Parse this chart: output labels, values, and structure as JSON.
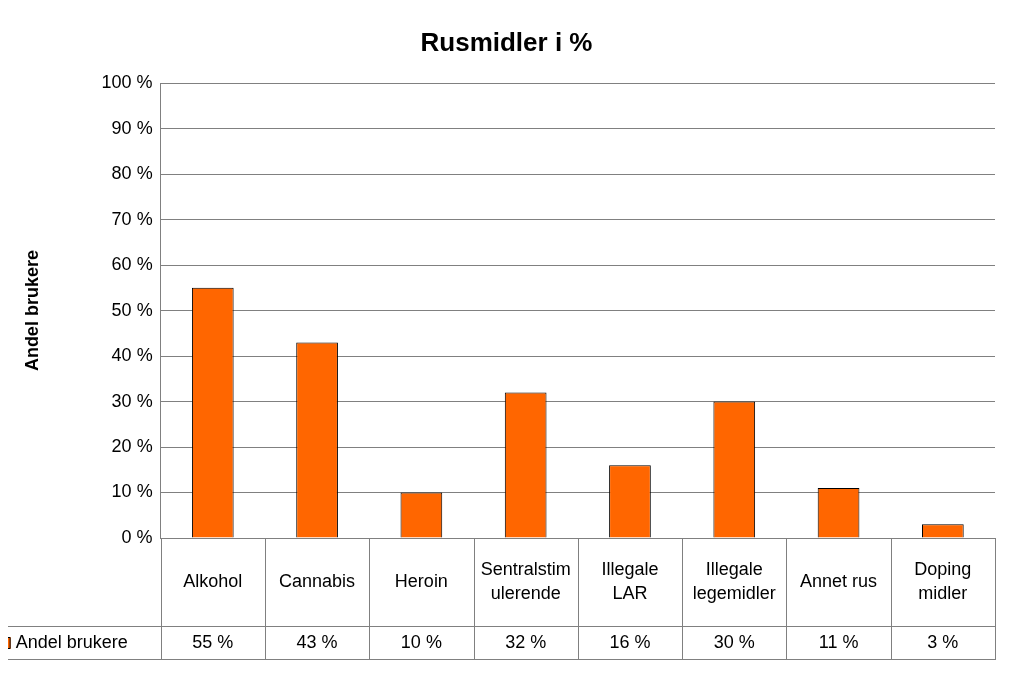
{
  "chart_data": {
    "type": "bar",
    "title": "Rusmidler i %",
    "ylabel": "Andel brukere",
    "categories": [
      "Alkohol",
      "Cannabis",
      "Heroin",
      "Sentralstimulerende",
      "Illegale LAR",
      "Illegale legemidler",
      "Annet rus",
      "Doping midler"
    ],
    "series": [
      {
        "name": "Andel brukere",
        "color": "#ff6600",
        "values": [
          55,
          43,
          10,
          32,
          16,
          30,
          11,
          3
        ]
      }
    ],
    "ylim": [
      0,
      100
    ],
    "yticks": [
      {
        "value": 0,
        "label": "0 %"
      },
      {
        "value": 10,
        "label": "10 %"
      },
      {
        "value": 20,
        "label": "20 %"
      },
      {
        "value": 30,
        "label": "30 %"
      },
      {
        "value": 40,
        "label": "40 %"
      },
      {
        "value": 50,
        "label": "50 %"
      },
      {
        "value": 60,
        "label": "60 %"
      },
      {
        "value": 70,
        "label": "70 %"
      },
      {
        "value": 80,
        "label": "80 %"
      },
      {
        "value": 90,
        "label": "90 %"
      },
      {
        "value": 100,
        "label": "100 %"
      }
    ],
    "value_labels": [
      "55 %",
      "43 %",
      "10 %",
      "32 %",
      "16 %",
      "30 %",
      "11 %",
      "3 %"
    ],
    "grid": "y",
    "legend": "bottom"
  }
}
